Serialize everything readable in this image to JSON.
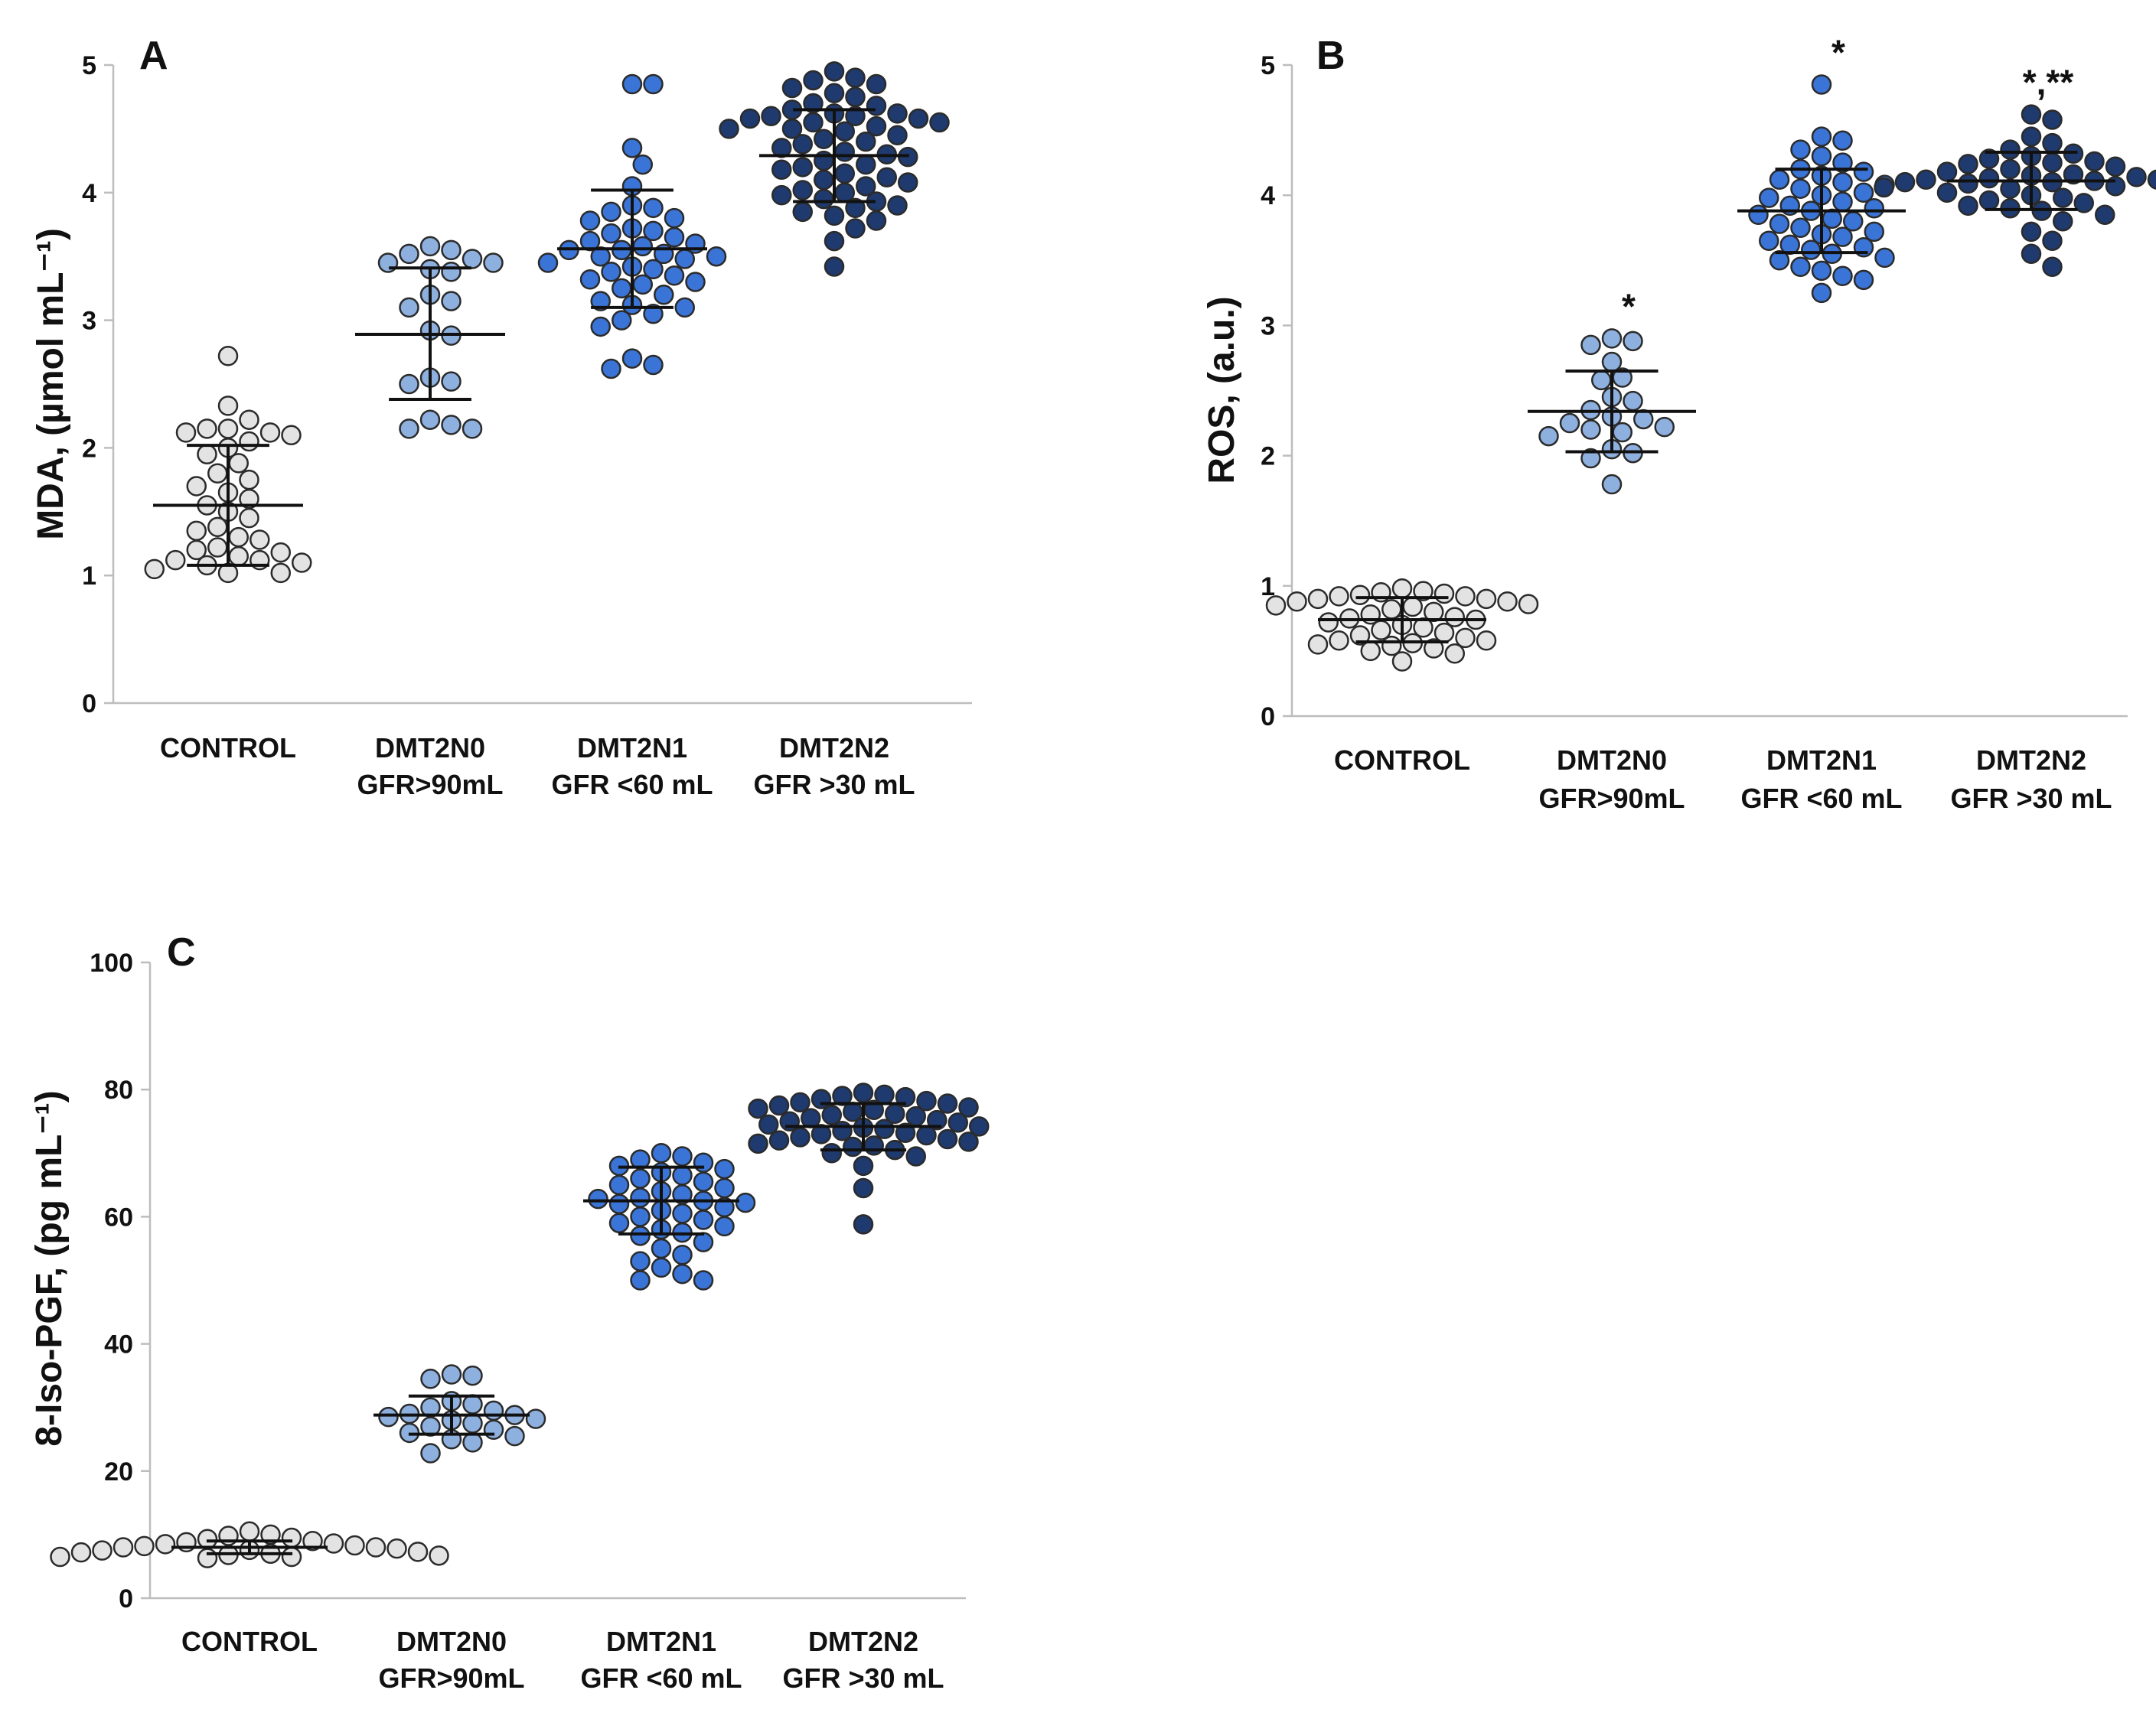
{
  "chart_data": [
    {
      "type": "scatter",
      "panel": "A",
      "ylabel": "MDA, (µmol mL⁻¹)",
      "ylim": [
        0,
        5
      ],
      "yticks": [
        0,
        1,
        2,
        3,
        4,
        5
      ],
      "categories": [
        {
          "line1": "CONTROL",
          "line2": ""
        },
        {
          "line1": "DMT2N0",
          "line2": "GFR>90mL"
        },
        {
          "line1": "DMT2N1",
          "line2": "GFR <60 mL"
        },
        {
          "line1": "DMT2N2",
          "line2": "GFR >30 mL"
        }
      ],
      "colors": [
        "#e3e3e3",
        "#8eb0df",
        "#3a74d6",
        "#1f3a6e"
      ],
      "groups": [
        {
          "mean": 1.55,
          "sd_low": 1.08,
          "sd_high": 2.02,
          "sig": "",
          "points": [
            2.72,
            2.33,
            2.22,
            2.15,
            2.15,
            2.12,
            2.12,
            2.1,
            2.05,
            2.0,
            1.95,
            1.88,
            1.8,
            1.75,
            1.7,
            1.65,
            1.6,
            1.55,
            1.5,
            1.45,
            1.38,
            1.35,
            1.3,
            1.28,
            1.22,
            1.2,
            1.18,
            1.15,
            1.12,
            1.12,
            1.1,
            1.08,
            1.05,
            1.02,
            1.02
          ]
        },
        {
          "mean": 2.89,
          "sd_low": 2.38,
          "sd_high": 3.41,
          "sig": "",
          "points": [
            3.58,
            3.55,
            3.52,
            3.48,
            3.45,
            3.45,
            3.4,
            3.38,
            3.2,
            3.15,
            3.1,
            2.92,
            2.88,
            2.55,
            2.52,
            2.5,
            2.22,
            2.18,
            2.15,
            2.15
          ]
        },
        {
          "mean": 3.56,
          "sd_low": 3.1,
          "sd_high": 4.02,
          "sig": "",
          "points": [
            4.85,
            4.85,
            4.35,
            4.22,
            4.05,
            3.9,
            3.88,
            3.85,
            3.8,
            3.78,
            3.72,
            3.7,
            3.68,
            3.65,
            3.62,
            3.6,
            3.58,
            3.55,
            3.55,
            3.52,
            3.5,
            3.5,
            3.48,
            3.45,
            3.42,
            3.4,
            3.38,
            3.35,
            3.32,
            3.3,
            3.28,
            3.25,
            3.2,
            3.15,
            3.12,
            3.1,
            3.05,
            3.0,
            2.95,
            2.7,
            2.65,
            2.62
          ]
        },
        {
          "mean": 4.29,
          "sd_low": 3.93,
          "sd_high": 4.65,
          "sig": "",
          "points": [
            4.95,
            4.9,
            4.88,
            4.85,
            4.82,
            4.78,
            4.75,
            4.7,
            4.68,
            4.65,
            4.62,
            4.62,
            4.6,
            4.6,
            4.58,
            4.58,
            4.55,
            4.55,
            4.52,
            4.5,
            4.5,
            4.48,
            4.45,
            4.42,
            4.4,
            4.38,
            4.35,
            4.32,
            4.3,
            4.28,
            4.25,
            4.22,
            4.2,
            4.18,
            4.15,
            4.12,
            4.1,
            4.08,
            4.05,
            4.02,
            4.0,
            3.98,
            3.95,
            3.93,
            3.9,
            3.88,
            3.85,
            3.82,
            3.78,
            3.72,
            3.62,
            3.42
          ]
        }
      ]
    },
    {
      "type": "scatter",
      "panel": "B",
      "ylabel": "ROS, (a.u.)",
      "ylim": [
        0,
        5
      ],
      "yticks": [
        0,
        1,
        2,
        3,
        4,
        5
      ],
      "categories": [
        {
          "line1": "CONTROL",
          "line2": ""
        },
        {
          "line1": "DMT2N0",
          "line2": "GFR>90mL"
        },
        {
          "line1": "DMT2N1",
          "line2": "GFR <60 mL"
        },
        {
          "line1": "DMT2N2",
          "line2": "GFR >30 mL"
        }
      ],
      "colors": [
        "#e3e3e3",
        "#8eb0df",
        "#3a74d6",
        "#1f3a6e"
      ],
      "groups": [
        {
          "mean": 0.74,
          "sd_low": 0.57,
          "sd_high": 0.91,
          "sig": "",
          "points": [
            0.98,
            0.96,
            0.95,
            0.94,
            0.93,
            0.92,
            0.92,
            0.9,
            0.9,
            0.88,
            0.88,
            0.86,
            0.85,
            0.84,
            0.82,
            0.8,
            0.78,
            0.76,
            0.75,
            0.74,
            0.72,
            0.7,
            0.68,
            0.66,
            0.64,
            0.62,
            0.6,
            0.58,
            0.58,
            0.56,
            0.55,
            0.54,
            0.52,
            0.5,
            0.48,
            0.42
          ]
        },
        {
          "mean": 2.34,
          "sd_low": 2.03,
          "sd_high": 2.65,
          "sig": "*",
          "points": [
            2.9,
            2.88,
            2.85,
            2.72,
            2.6,
            2.58,
            2.45,
            2.42,
            2.35,
            2.3,
            2.28,
            2.25,
            2.22,
            2.2,
            2.18,
            2.15,
            2.05,
            2.02,
            1.98,
            1.78
          ]
        },
        {
          "mean": 3.88,
          "sd_low": 3.56,
          "sd_high": 4.2,
          "sig": "*",
          "points": [
            4.85,
            4.45,
            4.42,
            4.35,
            4.3,
            4.25,
            4.2,
            4.18,
            4.15,
            4.12,
            4.1,
            4.08,
            4.05,
            4.02,
            4.0,
            3.98,
            3.95,
            3.92,
            3.9,
            3.88,
            3.85,
            3.82,
            3.8,
            3.78,
            3.75,
            3.72,
            3.7,
            3.68,
            3.65,
            3.62,
            3.6,
            3.58,
            3.55,
            3.52,
            3.5,
            3.45,
            3.42,
            3.38,
            3.35,
            3.25
          ]
        },
        {
          "mean": 4.11,
          "sd_low": 3.89,
          "sd_high": 4.33,
          "sig": "*,**",
          "points": [
            4.62,
            4.58,
            4.45,
            4.4,
            4.35,
            4.32,
            4.3,
            4.28,
            4.26,
            4.25,
            4.24,
            4.22,
            4.2,
            4.18,
            4.16,
            4.15,
            4.14,
            4.13,
            4.12,
            4.12,
            4.11,
            4.1,
            4.1,
            4.09,
            4.08,
            4.07,
            4.06,
            4.05,
            4.04,
            4.02,
            4.0,
            3.98,
            3.96,
            3.94,
            3.92,
            3.9,
            3.88,
            3.85,
            3.8,
            3.72,
            3.65,
            3.55,
            3.45
          ]
        }
      ]
    },
    {
      "type": "scatter",
      "panel": "C",
      "ylabel": "8-Iso-PGF, (pg mL⁻¹)",
      "ylim": [
        0,
        100
      ],
      "yticks": [
        0,
        20,
        40,
        60,
        80,
        100
      ],
      "categories": [
        {
          "line1": "CONTROL",
          "line2": ""
        },
        {
          "line1": "DMT2N0",
          "line2": "GFR>90mL"
        },
        {
          "line1": "DMT2N1",
          "line2": "GFR <60 mL"
        },
        {
          "line1": "DMT2N2",
          "line2": "GFR >30 mL"
        }
      ],
      "colors": [
        "#e3e3e3",
        "#8eb0df",
        "#3a74d6",
        "#1f3a6e"
      ],
      "groups": [
        {
          "mean": 8.0,
          "sd_low": 7.0,
          "sd_high": 9.0,
          "sig": "",
          "points": [
            10.5,
            10.0,
            9.8,
            9.5,
            9.3,
            9.0,
            8.8,
            8.6,
            8.5,
            8.3,
            8.2,
            8.0,
            8.0,
            7.8,
            7.6,
            7.5,
            7.3,
            7.2,
            7.0,
            6.8,
            6.7,
            6.5,
            6.5,
            6.3
          ]
        },
        {
          "mean": 28.8,
          "sd_low": 25.8,
          "sd_high": 31.8,
          "sig": "",
          "points": [
            35.2,
            35.0,
            34.5,
            31.0,
            30.5,
            30.0,
            29.5,
            29.0,
            28.8,
            28.5,
            28.2,
            28.0,
            27.5,
            27.0,
            26.5,
            26.0,
            25.5,
            25.0,
            24.5,
            22.8
          ]
        },
        {
          "mean": 62.5,
          "sd_low": 57.3,
          "sd_high": 67.8,
          "sig": "",
          "points": [
            70.0,
            69.5,
            69.0,
            68.5,
            68.0,
            67.5,
            67.0,
            66.5,
            66.0,
            65.5,
            65.0,
            64.5,
            64.0,
            63.5,
            63.0,
            62.8,
            62.5,
            62.2,
            62.0,
            61.5,
            61.0,
            60.5,
            60.0,
            59.5,
            59.0,
            58.5,
            58.0,
            57.5,
            57.0,
            56.0,
            55.0,
            54.0,
            53.0,
            52.0,
            51.0,
            50.0,
            50.0
          ]
        },
        {
          "mean": 74.2,
          "sd_low": 70.5,
          "sd_high": 77.8,
          "sig": "",
          "points": [
            79.5,
            79.2,
            79.0,
            78.8,
            78.5,
            78.2,
            78.0,
            77.8,
            77.5,
            77.2,
            77.0,
            76.8,
            76.5,
            76.2,
            76.0,
            75.8,
            75.5,
            75.2,
            75.0,
            74.8,
            74.5,
            74.2,
            74.0,
            73.8,
            73.5,
            73.2,
            73.0,
            72.8,
            72.5,
            72.2,
            72.0,
            71.8,
            71.5,
            71.2,
            71.0,
            70.5,
            70.0,
            69.5,
            68.0,
            64.5,
            58.8
          ]
        }
      ]
    }
  ]
}
